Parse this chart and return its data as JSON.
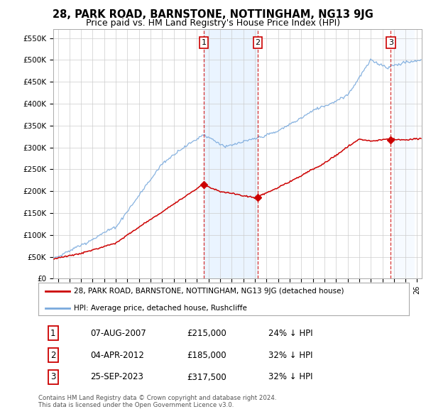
{
  "title": "28, PARK ROAD, BARNSTONE, NOTTINGHAM, NG13 9JG",
  "subtitle": "Price paid vs. HM Land Registry's House Price Index (HPI)",
  "ylim": [
    0,
    570000
  ],
  "yticks": [
    0,
    50000,
    100000,
    150000,
    200000,
    250000,
    300000,
    350000,
    400000,
    450000,
    500000,
    550000
  ],
  "ytick_labels": [
    "£0",
    "£50K",
    "£100K",
    "£150K",
    "£200K",
    "£250K",
    "£300K",
    "£350K",
    "£400K",
    "£450K",
    "£500K",
    "£550K"
  ],
  "hpi_color": "#7aaadd",
  "price_color": "#cc0000",
  "sale1_date": 2007.58,
  "sale1_price": 215000,
  "sale2_date": 2012.25,
  "sale2_price": 185000,
  "sale3_date": 2023.73,
  "sale3_price": 317500,
  "legend_property": "28, PARK ROAD, BARNSTONE, NOTTINGHAM, NG13 9JG (detached house)",
  "legend_hpi": "HPI: Average price, detached house, Rushcliffe",
  "table_rows": [
    [
      "1",
      "07-AUG-2007",
      "£215,000",
      "24% ↓ HPI"
    ],
    [
      "2",
      "04-APR-2012",
      "£185,000",
      "32% ↓ HPI"
    ],
    [
      "3",
      "25-SEP-2023",
      "£317,500",
      "32% ↓ HPI"
    ]
  ],
  "footnote": "Contains HM Land Registry data © Crown copyright and database right 2024.\nThis data is licensed under the Open Government Licence v3.0.",
  "background_color": "#ffffff",
  "grid_color": "#cccccc",
  "shade_color": "#ddeeff",
  "hatch_color": "#bbccdd",
  "xlim_start": 1994.6,
  "xlim_end": 2026.4,
  "xtick_start": 1995,
  "xtick_end": 2026
}
